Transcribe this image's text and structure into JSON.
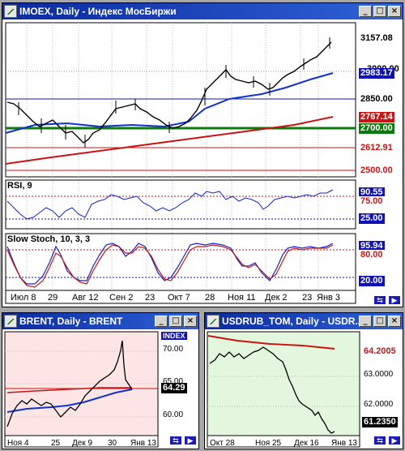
{
  "main": {
    "title": "IMOEX, Daily - Индекс МосБиржи",
    "price_axis": [
      "3000.00"
    ],
    "tags": {
      "last": "3157.08",
      "ma_blue": "2983.17",
      "level_2850": "2850.00",
      "ma_red": "2767.14",
      "level_2700": "2700.00",
      "level_2612": "2612.91",
      "level_2500": "2500.00"
    },
    "rsi": {
      "label": "RSI, 9",
      "value": "90.55",
      "upper": "75.00",
      "lower": "25.00"
    },
    "stoch": {
      "label": "Slow Stoch, 10, 3, 3",
      "value": "95.94",
      "upper": "80.00",
      "lower": "20.00"
    },
    "x_labels": [
      "Июл 8",
      "29",
      "Авг 12",
      "Сен 2",
      "23",
      "Окт 7",
      "28",
      "Ноя 11",
      "Дек 2",
      "23",
      "Янв 3"
    ]
  },
  "brent": {
    "title": "BRENT, Daily - BRENT",
    "index_badge": "INDEX",
    "axis": [
      "70.00",
      "65.00",
      "60.00"
    ],
    "last": "64.29",
    "x_labels": [
      "Ноя 4",
      "25",
      "Дек 9",
      "30",
      "Янв 13"
    ]
  },
  "usdrub": {
    "title": "USDRUB_TOM, Daily - USDR...",
    "last_top": "64.2005",
    "axis": [
      "63.0000",
      "62.0000"
    ],
    "last": "61.2350",
    "x_labels": [
      "Окт 28",
      "Ноя 25",
      "Дек 16",
      "Янв 13"
    ]
  },
  "colors": {
    "title_bar": "#0a2a9c",
    "tag_blue": "#1111bb",
    "tag_green": "#0d7a0d",
    "tag_red": "#c81414",
    "brent_bg": "#fde5e5",
    "usd_bg": "#e2f7dd"
  }
}
